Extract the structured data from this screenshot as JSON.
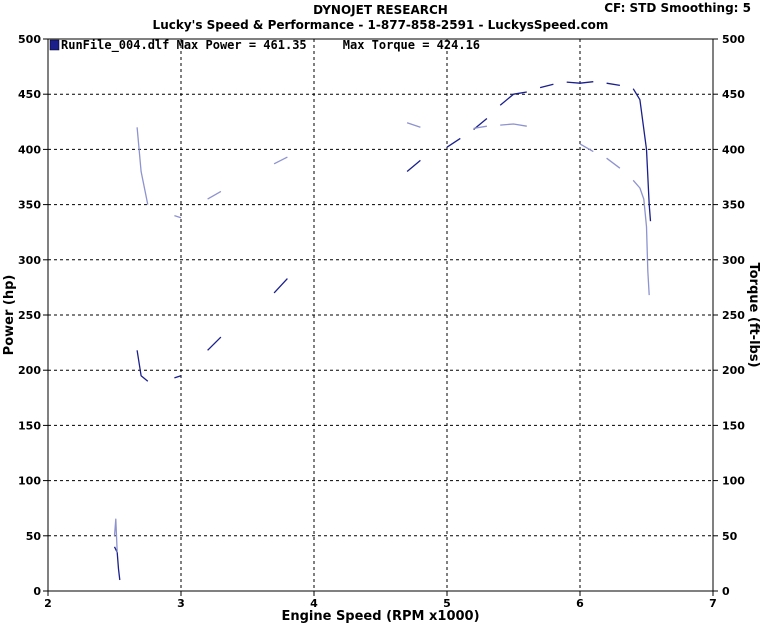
{
  "header": {
    "title": "DYNOJET RESEARCH",
    "subtitle": "Lucky's Speed & Performance - 1-877-858-2591 - LuckysSpeed.com",
    "cf_label": "CF: STD  Smoothing: 5"
  },
  "colors": {
    "power": "#1a1f8c",
    "torque": "#8e93cf",
    "grid": "#000000"
  },
  "chart_data": {
    "type": "line",
    "title": "DYNOJET RESEARCH",
    "xlabel": "Engine Speed (RPM x1000)",
    "ylabel": "Power (hp)",
    "y2label": "Torque (ft-lbs)",
    "xlim": [
      2,
      7
    ],
    "ylim": [
      0,
      500
    ],
    "y2lim": [
      0,
      500
    ],
    "xticks": [
      2,
      3,
      4,
      5,
      6,
      7
    ],
    "yticks": [
      0,
      50,
      100,
      150,
      200,
      250,
      300,
      350,
      400,
      450,
      500
    ],
    "grid": true,
    "legend": {
      "position": "top-left",
      "text": "RunFile_004.dlf Max Power = 461.35     Max Torque = 424.16"
    },
    "series": [
      {
        "name": "Power",
        "axis": "left",
        "points": [
          [
            2.5,
            40
          ],
          [
            2.52,
            35
          ],
          [
            2.53,
            20
          ],
          [
            2.54,
            10
          ],
          [
            2.67,
            218
          ],
          [
            2.7,
            195
          ],
          [
            2.75,
            190
          ],
          [
            2.85,
            188
          ],
          [
            2.95,
            193
          ],
          [
            3.0,
            195
          ],
          [
            3.1,
            205
          ],
          [
            3.2,
            218
          ],
          [
            3.3,
            230
          ],
          [
            3.5,
            248
          ],
          [
            3.7,
            270
          ],
          [
            3.8,
            283
          ],
          [
            3.9,
            290
          ],
          [
            4.0,
            300
          ],
          [
            4.2,
            320
          ],
          [
            4.4,
            345
          ],
          [
            4.6,
            372
          ],
          [
            4.7,
            380
          ],
          [
            4.8,
            390
          ],
          [
            5.0,
            402
          ],
          [
            5.1,
            410
          ],
          [
            5.2,
            418
          ],
          [
            5.3,
            428
          ],
          [
            5.4,
            440
          ],
          [
            5.5,
            450
          ],
          [
            5.6,
            452
          ],
          [
            5.7,
            456
          ],
          [
            5.8,
            459
          ],
          [
            5.9,
            461
          ],
          [
            6.0,
            460
          ],
          [
            6.1,
            461.35
          ],
          [
            6.2,
            460
          ],
          [
            6.3,
            458
          ],
          [
            6.4,
            455
          ],
          [
            6.45,
            445
          ],
          [
            6.5,
            400
          ],
          [
            6.52,
            350
          ],
          [
            6.53,
            335
          ]
        ]
      },
      {
        "name": "Torque",
        "axis": "right",
        "points": [
          [
            2.5,
            50
          ],
          [
            2.51,
            65
          ],
          [
            2.52,
            35
          ],
          [
            2.67,
            420
          ],
          [
            2.7,
            380
          ],
          [
            2.75,
            350
          ],
          [
            2.85,
            345
          ],
          [
            2.95,
            340
          ],
          [
            3.0,
            338
          ],
          [
            3.1,
            345
          ],
          [
            3.2,
            355
          ],
          [
            3.3,
            362
          ],
          [
            3.4,
            368
          ],
          [
            3.5,
            372
          ],
          [
            3.6,
            380
          ],
          [
            3.7,
            387
          ],
          [
            3.8,
            393
          ],
          [
            3.9,
            390
          ],
          [
            4.0,
            392
          ],
          [
            4.2,
            398
          ],
          [
            4.4,
            410
          ],
          [
            4.6,
            421
          ],
          [
            4.7,
            424.16
          ],
          [
            4.8,
            420
          ],
          [
            5.0,
            421
          ],
          [
            5.2,
            419
          ],
          [
            5.3,
            421
          ],
          [
            5.4,
            422
          ],
          [
            5.5,
            423
          ],
          [
            5.6,
            421
          ],
          [
            5.8,
            415
          ],
          [
            6.0,
            405
          ],
          [
            6.1,
            398
          ],
          [
            6.2,
            392
          ],
          [
            6.3,
            383
          ],
          [
            6.4,
            372
          ],
          [
            6.45,
            365
          ],
          [
            6.48,
            355
          ],
          [
            6.5,
            330
          ],
          [
            6.51,
            290
          ],
          [
            6.52,
            268
          ]
        ]
      }
    ]
  }
}
